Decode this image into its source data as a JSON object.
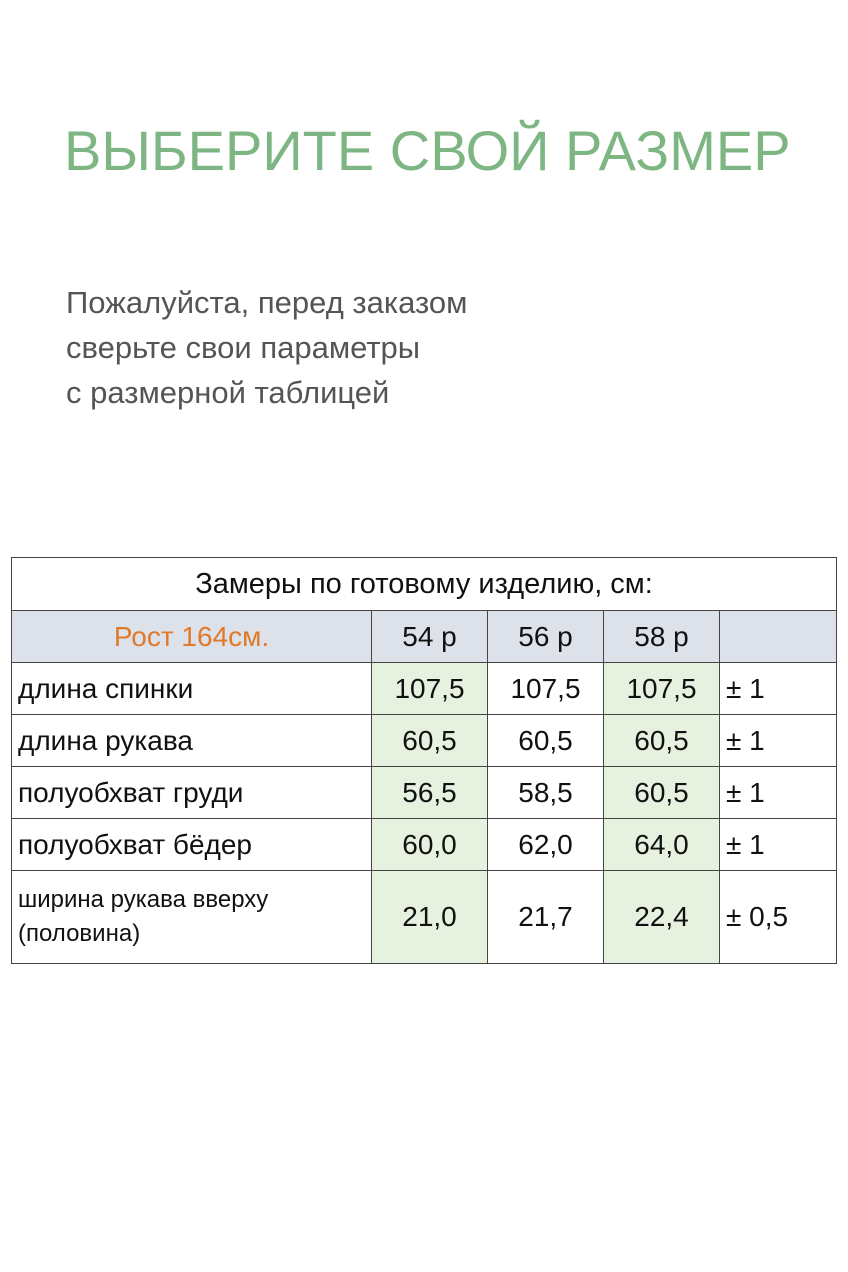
{
  "title": "ВЫБЕРИТЕ СВОЙ РАЗМЕР",
  "subtitle_lines": [
    "Пожалуйста, перед заказом",
    "сверьте свои параметры",
    "с размерной таблицей"
  ],
  "table": {
    "caption": "Замеры по готовому изделию, см:",
    "height_label": "Рост 164см.",
    "sizes": [
      "54 р",
      "56 р",
      "58 р"
    ],
    "rows": [
      {
        "label": "длина спинки",
        "values": [
          "107,5",
          "107,5",
          "107,5"
        ],
        "tolerance": "± 1"
      },
      {
        "label": "длина рукава",
        "values": [
          "60,5",
          "60,5",
          "60,5"
        ],
        "tolerance": "± 1"
      },
      {
        "label": "полуобхват груди",
        "values": [
          "56,5",
          "58,5",
          "60,5"
        ],
        "tolerance": "± 1"
      },
      {
        "label": "полуобхват бёдер",
        "values": [
          "60,0",
          "62,0",
          "64,0"
        ],
        "tolerance": "± 1"
      },
      {
        "label": "ширина рукава вверху",
        "label2": "(половина)",
        "values": [
          "21,0",
          "21,7",
          "22,4"
        ],
        "tolerance": "± 0,5"
      }
    ]
  },
  "colors": {
    "title": "#7db683",
    "height_label": "#e07a2b",
    "header_bg": "#dde1ea",
    "highlight": "#e7f1df"
  }
}
